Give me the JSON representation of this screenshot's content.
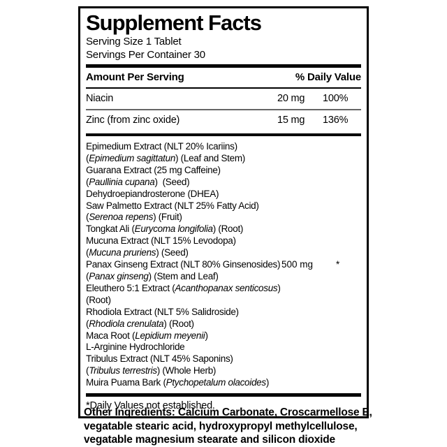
{
  "label": {
    "title": "Supplement Facts",
    "serving_size": "Serving Size 1 Tablet",
    "servings_per_container": "Servings Per Container 30",
    "columns": {
      "amount": "Amount Per Serving",
      "daily_value": "% Daily Value"
    },
    "nutrients": [
      {
        "name": "Niacin",
        "amount": "20 mg",
        "dv": "100%"
      },
      {
        "name": "Zinc (from zinc oxide)",
        "amount": "15 mg",
        "dv": "136%"
      }
    ],
    "blend": {
      "amount": "500 mg",
      "dv": "*",
      "amount_line_index": 10,
      "lines": [
        [
          {
            "t": "Epimedium Extract (NLT 20% Icariins)"
          }
        ],
        [
          {
            "t": "("
          },
          {
            "t": "Epimedium sagittatun",
            "i": true
          },
          {
            "t": ") (Leaf and Stem)"
          }
        ],
        [
          {
            "t": "Guarana Extract (25 mg Caffeine)"
          }
        ],
        [
          {
            "t": "("
          },
          {
            "t": "Paullinia cupana",
            "i": true
          },
          {
            "t": ")  (Seed)"
          }
        ],
        [
          {
            "t": "Dehydroepiandrosterone (DHEA)"
          }
        ],
        [
          {
            "t": "Saw Palmetto Extract (NLT 25% Fatty Acid)"
          }
        ],
        [
          {
            "t": "("
          },
          {
            "t": "Serenoa repens",
            "i": true
          },
          {
            "t": ") (Fruit)"
          }
        ],
        [
          {
            "t": "Tongkat Ali ("
          },
          {
            "t": "Eurycoma longifolia",
            "i": true
          },
          {
            "t": ") (Root)"
          }
        ],
        [
          {
            "t": "Mucuna Extract (NLT 15% Levodopa)"
          }
        ],
        [
          {
            "t": "("
          },
          {
            "t": "Mucuna pruriens",
            "i": true
          },
          {
            "t": ") (Seed)"
          }
        ],
        [
          {
            "t": "Panax Ginseng Extract (NLT 80% Ginsenosides)"
          }
        ],
        [
          {
            "t": "("
          },
          {
            "t": "Panax ginseng",
            "i": true
          },
          {
            "t": ") (Stem and Leaf)"
          }
        ],
        [
          {
            "t": "Eleuthero 5:1 Extract ("
          },
          {
            "t": "Acanthopanax senticosus",
            "i": true
          },
          {
            "t": ")"
          }
        ],
        [
          {
            "t": "(Root)"
          }
        ],
        [
          {
            "t": "Rhodiola Extract (NLT 5% Salidroside)"
          }
        ],
        [
          {
            "t": "("
          },
          {
            "t": "Rhodiola crenulata",
            "i": true
          },
          {
            "t": ") (Root)"
          }
        ],
        [
          {
            "t": "Maca Root ("
          },
          {
            "t": "Lepidium meyenii",
            "i": true
          },
          {
            "t": ")"
          }
        ],
        [
          {
            "t": "L-Arginine Hydrochloride"
          }
        ],
        [
          {
            "t": "Tribulus Extract (NLT 45% Saponins)"
          }
        ],
        [
          {
            "t": "("
          },
          {
            "t": "Tribulus terrestris",
            "i": true
          },
          {
            "t": ") (Whole Herb)"
          }
        ],
        [
          {
            "t": "Muira Puama Bark ("
          },
          {
            "t": "Ptychopetalum olacoides",
            "i": true
          },
          {
            "t": ")"
          }
        ]
      ]
    },
    "footnote": "*Daily Values not established."
  },
  "other_ingredients": {
    "lines": [
      "Other Ingredients: Calcium Carbonate, Croscarmellose E,",
      "vegatable stearic acid, hydroxypropyl methylcellulose,",
      "vegatable magnesium stearate and silicon dioxide"
    ]
  },
  "colors": {
    "ink": "#000000",
    "background": "#ffffff",
    "thin_rule": "#666666"
  }
}
